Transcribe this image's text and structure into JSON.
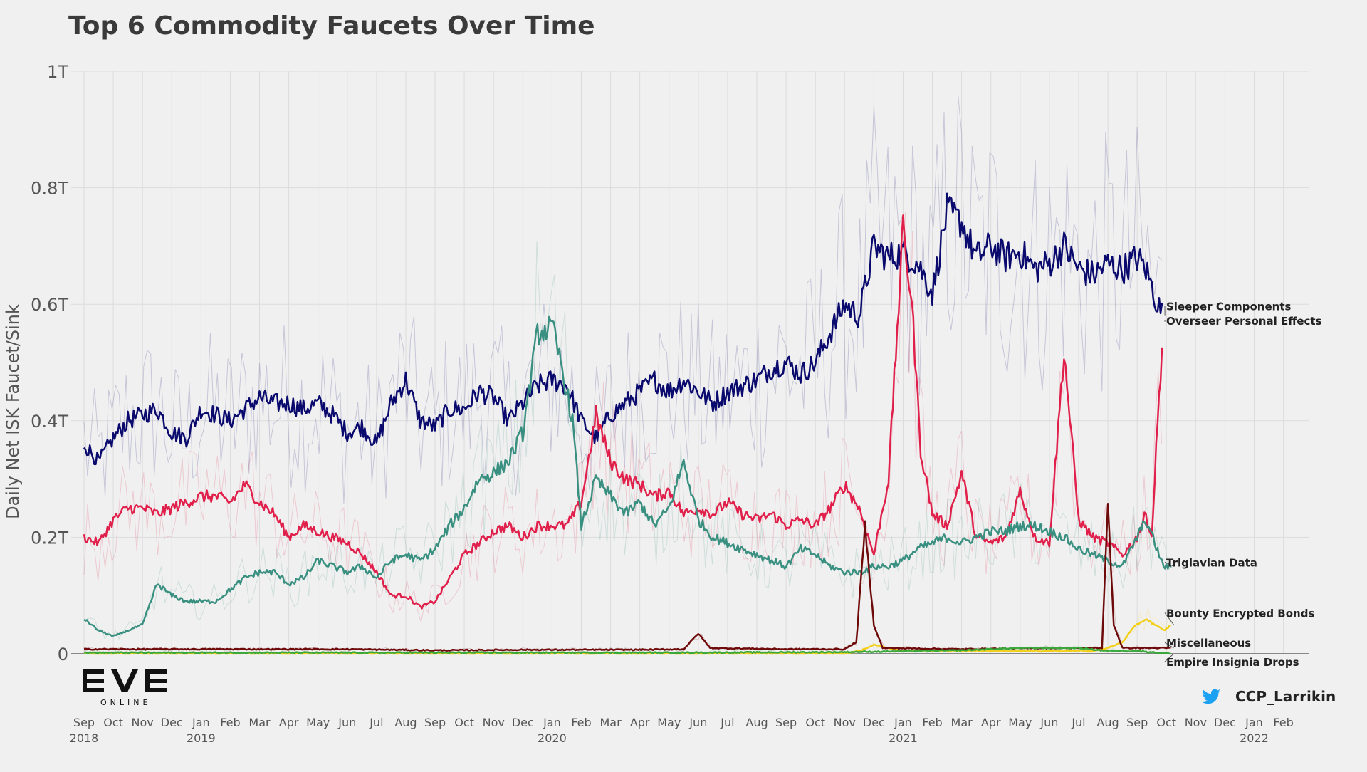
{
  "chart_data": {
    "type": "line",
    "title": "Top 6 Commodity Faucets Over Time",
    "ylabel": "Daily Net ISK Faucet/Sink",
    "xlabel": "",
    "ylim": [
      0,
      1.0
    ],
    "y_unit": "trillion ISK",
    "y_ticks": [
      {
        "value": 0,
        "label": "0"
      },
      {
        "value": 0.2,
        "label": "0.2T"
      },
      {
        "value": 0.4,
        "label": "0.4T"
      },
      {
        "value": 0.6,
        "label": "0.6T"
      },
      {
        "value": 0.8,
        "label": "0.8T"
      },
      {
        "value": 1.0,
        "label": "1T"
      }
    ],
    "x_range": [
      "2018-09-01",
      "2022-03-01"
    ],
    "x_month_labels": [
      "Sep",
      "Oct",
      "Nov",
      "Dec",
      "Jan",
      "Feb",
      "Mar",
      "Apr",
      "May",
      "Jun",
      "Jul",
      "Aug",
      "Sep",
      "Oct",
      "Nov",
      "Dec",
      "Jan",
      "Feb",
      "Mar",
      "Apr",
      "May",
      "Jun",
      "Jul",
      "Aug",
      "Sep",
      "Oct",
      "Nov",
      "Dec",
      "Jan",
      "Feb",
      "Mar",
      "Apr",
      "May",
      "Jun",
      "Jul",
      "Aug",
      "Sep",
      "Oct",
      "Nov",
      "Dec",
      "Jan",
      "Feb"
    ],
    "x_year_labels": [
      {
        "label": "2018",
        "month_index": 0
      },
      {
        "label": "2019",
        "month_index": 4
      },
      {
        "label": "2020",
        "month_index": 16
      },
      {
        "label": "2021",
        "month_index": 28
      },
      {
        "label": "2022",
        "month_index": 40
      }
    ],
    "grid": true,
    "legend": "direct labels at right end of lines",
    "series": [
      {
        "name": "Sleeper Components",
        "color": "#0a0a6e",
        "points": [
          [
            0.0,
            0.36
          ],
          [
            0.5,
            0.33
          ],
          [
            1.0,
            0.37
          ],
          [
            1.5,
            0.4
          ],
          [
            2.0,
            0.41
          ],
          [
            2.5,
            0.42
          ],
          [
            3.0,
            0.38
          ],
          [
            3.5,
            0.37
          ],
          [
            4.0,
            0.42
          ],
          [
            4.5,
            0.41
          ],
          [
            5.0,
            0.4
          ],
          [
            5.5,
            0.42
          ],
          [
            6.0,
            0.44
          ],
          [
            6.5,
            0.43
          ],
          [
            7.0,
            0.43
          ],
          [
            7.5,
            0.42
          ],
          [
            8.0,
            0.43
          ],
          [
            8.5,
            0.41
          ],
          [
            9.0,
            0.38
          ],
          [
            9.5,
            0.39
          ],
          [
            10.0,
            0.36
          ],
          [
            10.5,
            0.43
          ],
          [
            11.0,
            0.47
          ],
          [
            11.5,
            0.4
          ],
          [
            12.0,
            0.39
          ],
          [
            12.5,
            0.42
          ],
          [
            13.0,
            0.42
          ],
          [
            13.5,
            0.45
          ],
          [
            14.0,
            0.44
          ],
          [
            14.5,
            0.4
          ],
          [
            15.0,
            0.43
          ],
          [
            15.5,
            0.46
          ],
          [
            16.0,
            0.47
          ],
          [
            16.5,
            0.46
          ],
          [
            17.0,
            0.4
          ],
          [
            17.5,
            0.37
          ],
          [
            18.0,
            0.41
          ],
          [
            18.5,
            0.43
          ],
          [
            19.0,
            0.45
          ],
          [
            19.5,
            0.47
          ],
          [
            20.0,
            0.45
          ],
          [
            20.5,
            0.47
          ],
          [
            21.0,
            0.45
          ],
          [
            21.5,
            0.43
          ],
          [
            22.0,
            0.45
          ],
          [
            22.5,
            0.46
          ],
          [
            23.0,
            0.47
          ],
          [
            23.5,
            0.49
          ],
          [
            24.0,
            0.5
          ],
          [
            24.5,
            0.48
          ],
          [
            25.0,
            0.5
          ],
          [
            25.5,
            0.55
          ],
          [
            26.0,
            0.6
          ],
          [
            26.5,
            0.58
          ],
          [
            27.0,
            0.7
          ],
          [
            27.5,
            0.68
          ],
          [
            28.0,
            0.69
          ],
          [
            28.5,
            0.67
          ],
          [
            29.0,
            0.62
          ],
          [
            29.5,
            0.76
          ],
          [
            30.0,
            0.74
          ],
          [
            30.5,
            0.68
          ],
          [
            31.0,
            0.7
          ],
          [
            31.5,
            0.68
          ],
          [
            32.0,
            0.69
          ],
          [
            32.5,
            0.66
          ],
          [
            33.0,
            0.67
          ],
          [
            33.5,
            0.7
          ],
          [
            34.0,
            0.66
          ],
          [
            34.5,
            0.65
          ],
          [
            35.0,
            0.67
          ],
          [
            35.5,
            0.66
          ],
          [
            36.0,
            0.68
          ],
          [
            36.3,
            0.66
          ],
          [
            36.5,
            0.63
          ],
          [
            36.7,
            0.6
          ],
          [
            36.9,
            0.58
          ]
        ],
        "end_label": "Sleeper Components"
      },
      {
        "name": "Overseer Personal Effects",
        "color": "#e0204a",
        "points": [
          [
            0.0,
            0.2
          ],
          [
            0.5,
            0.19
          ],
          [
            1.0,
            0.23
          ],
          [
            1.5,
            0.25
          ],
          [
            2.0,
            0.25
          ],
          [
            2.5,
            0.24
          ],
          [
            3.0,
            0.25
          ],
          [
            3.5,
            0.26
          ],
          [
            4.0,
            0.27
          ],
          [
            4.5,
            0.27
          ],
          [
            5.0,
            0.26
          ],
          [
            5.5,
            0.29
          ],
          [
            6.0,
            0.26
          ],
          [
            6.5,
            0.24
          ],
          [
            7.0,
            0.2
          ],
          [
            7.5,
            0.22
          ],
          [
            8.0,
            0.21
          ],
          [
            8.5,
            0.2
          ],
          [
            9.0,
            0.19
          ],
          [
            9.5,
            0.17
          ],
          [
            10.0,
            0.14
          ],
          [
            10.5,
            0.1
          ],
          [
            11.0,
            0.1
          ],
          [
            11.5,
            0.08
          ],
          [
            12.0,
            0.09
          ],
          [
            12.5,
            0.13
          ],
          [
            13.0,
            0.17
          ],
          [
            13.5,
            0.19
          ],
          [
            14.0,
            0.21
          ],
          [
            14.5,
            0.22
          ],
          [
            15.0,
            0.2
          ],
          [
            15.5,
            0.22
          ],
          [
            16.0,
            0.22
          ],
          [
            16.5,
            0.22
          ],
          [
            17.0,
            0.26
          ],
          [
            17.5,
            0.41
          ],
          [
            18.0,
            0.33
          ],
          [
            18.5,
            0.3
          ],
          [
            19.0,
            0.29
          ],
          [
            19.5,
            0.27
          ],
          [
            20.0,
            0.28
          ],
          [
            20.5,
            0.24
          ],
          [
            21.0,
            0.25
          ],
          [
            21.5,
            0.24
          ],
          [
            22.0,
            0.26
          ],
          [
            22.5,
            0.24
          ],
          [
            23.0,
            0.23
          ],
          [
            23.5,
            0.24
          ],
          [
            24.0,
            0.22
          ],
          [
            24.5,
            0.23
          ],
          [
            25.0,
            0.22
          ],
          [
            25.5,
            0.25
          ],
          [
            26.0,
            0.29
          ],
          [
            26.5,
            0.25
          ],
          [
            27.0,
            0.17
          ],
          [
            27.5,
            0.3
          ],
          [
            28.0,
            0.73
          ],
          [
            28.3,
            0.6
          ],
          [
            28.6,
            0.35
          ],
          [
            29.0,
            0.24
          ],
          [
            29.5,
            0.22
          ],
          [
            30.0,
            0.31
          ],
          [
            30.5,
            0.2
          ],
          [
            31.0,
            0.19
          ],
          [
            31.5,
            0.2
          ],
          [
            32.0,
            0.28
          ],
          [
            32.5,
            0.2
          ],
          [
            33.0,
            0.19
          ],
          [
            33.5,
            0.52
          ],
          [
            34.0,
            0.23
          ],
          [
            34.5,
            0.2
          ],
          [
            35.0,
            0.19
          ],
          [
            35.5,
            0.17
          ],
          [
            36.0,
            0.2
          ],
          [
            36.3,
            0.24
          ],
          [
            36.5,
            0.2
          ],
          [
            36.7,
            0.4
          ],
          [
            36.9,
            0.57
          ]
        ],
        "end_label": "Overseer Personal Effects"
      },
      {
        "name": "Triglavian Data",
        "color": "#3a9080",
        "points": [
          [
            0.0,
            0.06
          ],
          [
            0.5,
            0.04
          ],
          [
            1.0,
            0.03
          ],
          [
            1.5,
            0.04
          ],
          [
            2.0,
            0.05
          ],
          [
            2.5,
            0.12
          ],
          [
            3.0,
            0.1
          ],
          [
            3.5,
            0.09
          ],
          [
            4.0,
            0.09
          ],
          [
            4.5,
            0.09
          ],
          [
            5.0,
            0.11
          ],
          [
            5.5,
            0.13
          ],
          [
            6.0,
            0.14
          ],
          [
            6.5,
            0.14
          ],
          [
            7.0,
            0.12
          ],
          [
            7.5,
            0.13
          ],
          [
            8.0,
            0.16
          ],
          [
            8.5,
            0.15
          ],
          [
            9.0,
            0.14
          ],
          [
            9.5,
            0.15
          ],
          [
            10.0,
            0.13
          ],
          [
            10.5,
            0.16
          ],
          [
            11.0,
            0.17
          ],
          [
            11.5,
            0.16
          ],
          [
            12.0,
            0.18
          ],
          [
            12.5,
            0.22
          ],
          [
            13.0,
            0.25
          ],
          [
            13.5,
            0.3
          ],
          [
            14.0,
            0.31
          ],
          [
            14.5,
            0.33
          ],
          [
            15.0,
            0.38
          ],
          [
            15.5,
            0.55
          ],
          [
            16.0,
            0.56
          ],
          [
            16.3,
            0.5
          ],
          [
            16.7,
            0.4
          ],
          [
            17.0,
            0.22
          ],
          [
            17.5,
            0.3
          ],
          [
            18.0,
            0.27
          ],
          [
            18.5,
            0.24
          ],
          [
            19.0,
            0.26
          ],
          [
            19.5,
            0.22
          ],
          [
            20.0,
            0.25
          ],
          [
            20.5,
            0.33
          ],
          [
            21.0,
            0.23
          ],
          [
            21.5,
            0.2
          ],
          [
            22.0,
            0.19
          ],
          [
            22.5,
            0.18
          ],
          [
            23.0,
            0.17
          ],
          [
            23.5,
            0.16
          ],
          [
            24.0,
            0.15
          ],
          [
            24.5,
            0.18
          ],
          [
            25.0,
            0.17
          ],
          [
            25.5,
            0.15
          ],
          [
            26.0,
            0.14
          ],
          [
            26.5,
            0.14
          ],
          [
            27.0,
            0.15
          ],
          [
            27.5,
            0.15
          ],
          [
            28.0,
            0.16
          ],
          [
            28.5,
            0.18
          ],
          [
            29.0,
            0.19
          ],
          [
            29.5,
            0.2
          ],
          [
            30.0,
            0.19
          ],
          [
            30.5,
            0.2
          ],
          [
            31.0,
            0.21
          ],
          [
            31.5,
            0.21
          ],
          [
            32.0,
            0.22
          ],
          [
            32.5,
            0.22
          ],
          [
            33.0,
            0.21
          ],
          [
            33.5,
            0.2
          ],
          [
            34.0,
            0.18
          ],
          [
            34.5,
            0.17
          ],
          [
            35.0,
            0.16
          ],
          [
            35.5,
            0.15
          ],
          [
            36.0,
            0.2
          ],
          [
            36.3,
            0.23
          ],
          [
            36.6,
            0.19
          ],
          [
            36.9,
            0.15
          ],
          [
            37.2,
            0.15
          ]
        ],
        "end_label": "Triglavian Data"
      },
      {
        "name": "Bounty Encrypted Bonds",
        "color": "#f2d01a",
        "points": [
          [
            0.0,
            0.0
          ],
          [
            10.0,
            0.0
          ],
          [
            20.0,
            0.0
          ],
          [
            26.0,
            0.0
          ],
          [
            26.5,
            0.005
          ],
          [
            27.0,
            0.015
          ],
          [
            27.5,
            0.01
          ],
          [
            28.0,
            0.005
          ],
          [
            30.0,
            0.005
          ],
          [
            33.0,
            0.005
          ],
          [
            34.5,
            0.005
          ],
          [
            35.0,
            0.01
          ],
          [
            35.5,
            0.02
          ],
          [
            35.8,
            0.04
          ],
          [
            36.0,
            0.05
          ],
          [
            36.3,
            0.06
          ],
          [
            36.6,
            0.05
          ],
          [
            36.9,
            0.04
          ],
          [
            37.2,
            0.05
          ]
        ],
        "end_label": "Bounty Encrypted Bonds"
      },
      {
        "name": "Miscellaneous",
        "color": "#6e0a0a",
        "points": [
          [
            0.0,
            0.008
          ],
          [
            3.0,
            0.008
          ],
          [
            6.0,
            0.008
          ],
          [
            9.0,
            0.008
          ],
          [
            12.0,
            0.006
          ],
          [
            15.0,
            0.007
          ],
          [
            19.0,
            0.007
          ],
          [
            20.5,
            0.008
          ],
          [
            21.0,
            0.035
          ],
          [
            21.4,
            0.01
          ],
          [
            24.0,
            0.008
          ],
          [
            26.0,
            0.008
          ],
          [
            26.4,
            0.02
          ],
          [
            26.7,
            0.22
          ],
          [
            27.0,
            0.05
          ],
          [
            27.3,
            0.01
          ],
          [
            30.0,
            0.008
          ],
          [
            33.0,
            0.01
          ],
          [
            34.8,
            0.01
          ],
          [
            35.0,
            0.26
          ],
          [
            35.2,
            0.05
          ],
          [
            35.5,
            0.01
          ],
          [
            36.5,
            0.01
          ],
          [
            37.2,
            0.01
          ]
        ],
        "end_label": "Miscellaneous"
      },
      {
        "name": "Empire Insignia Drops",
        "color": "#3aa83a",
        "points": [
          [
            0.0,
            0.002
          ],
          [
            10.0,
            0.002
          ],
          [
            20.0,
            0.002
          ],
          [
            26.0,
            0.003
          ],
          [
            30.0,
            0.006
          ],
          [
            32.0,
            0.01
          ],
          [
            33.0,
            0.01
          ],
          [
            34.0,
            0.01
          ],
          [
            35.0,
            0.005
          ],
          [
            36.0,
            0.005
          ],
          [
            37.2,
            0.0
          ]
        ],
        "end_label": "Empire Insignia Drops"
      }
    ],
    "annotations": [
      "@CCP_Larrikin"
    ]
  },
  "logo": {
    "wordmark": "EVE",
    "subtitle": "ONLINE"
  },
  "credit": "CCP_Larrikin"
}
